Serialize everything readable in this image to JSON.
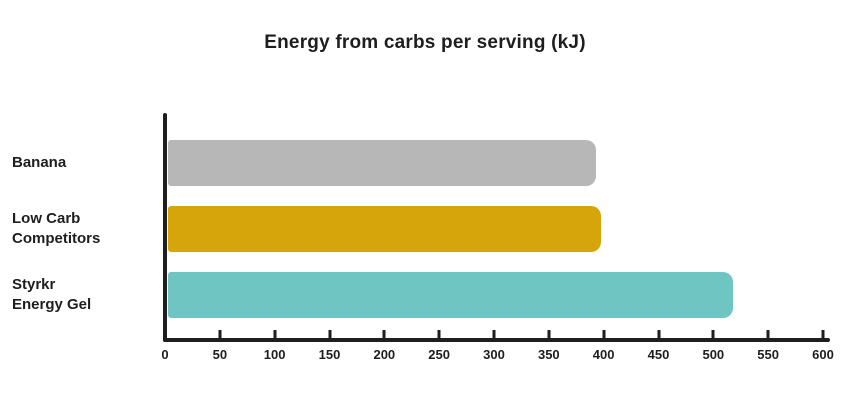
{
  "chart_data": {
    "type": "bar",
    "orientation": "horizontal",
    "title": "Energy from carbs per serving (kJ)",
    "categories": [
      "Banana",
      "Low Carb\nCompetitors",
      "Styrkr\nEnergy Gel"
    ],
    "values": [
      390,
      395,
      515
    ],
    "bar_colors": [
      "#b7b7b7",
      "#d6a50c",
      "#6fc5c1"
    ],
    "xlabel": "",
    "ylabel": "",
    "xlim": [
      0,
      600
    ],
    "x_ticks": [
      0,
      50,
      100,
      150,
      200,
      250,
      300,
      350,
      400,
      450,
      500,
      550,
      600
    ],
    "grid": false,
    "legend": "none",
    "axis_color": "#1e1e1e",
    "text_color": "#1e1e1e",
    "background_color": "#ffffff"
  }
}
